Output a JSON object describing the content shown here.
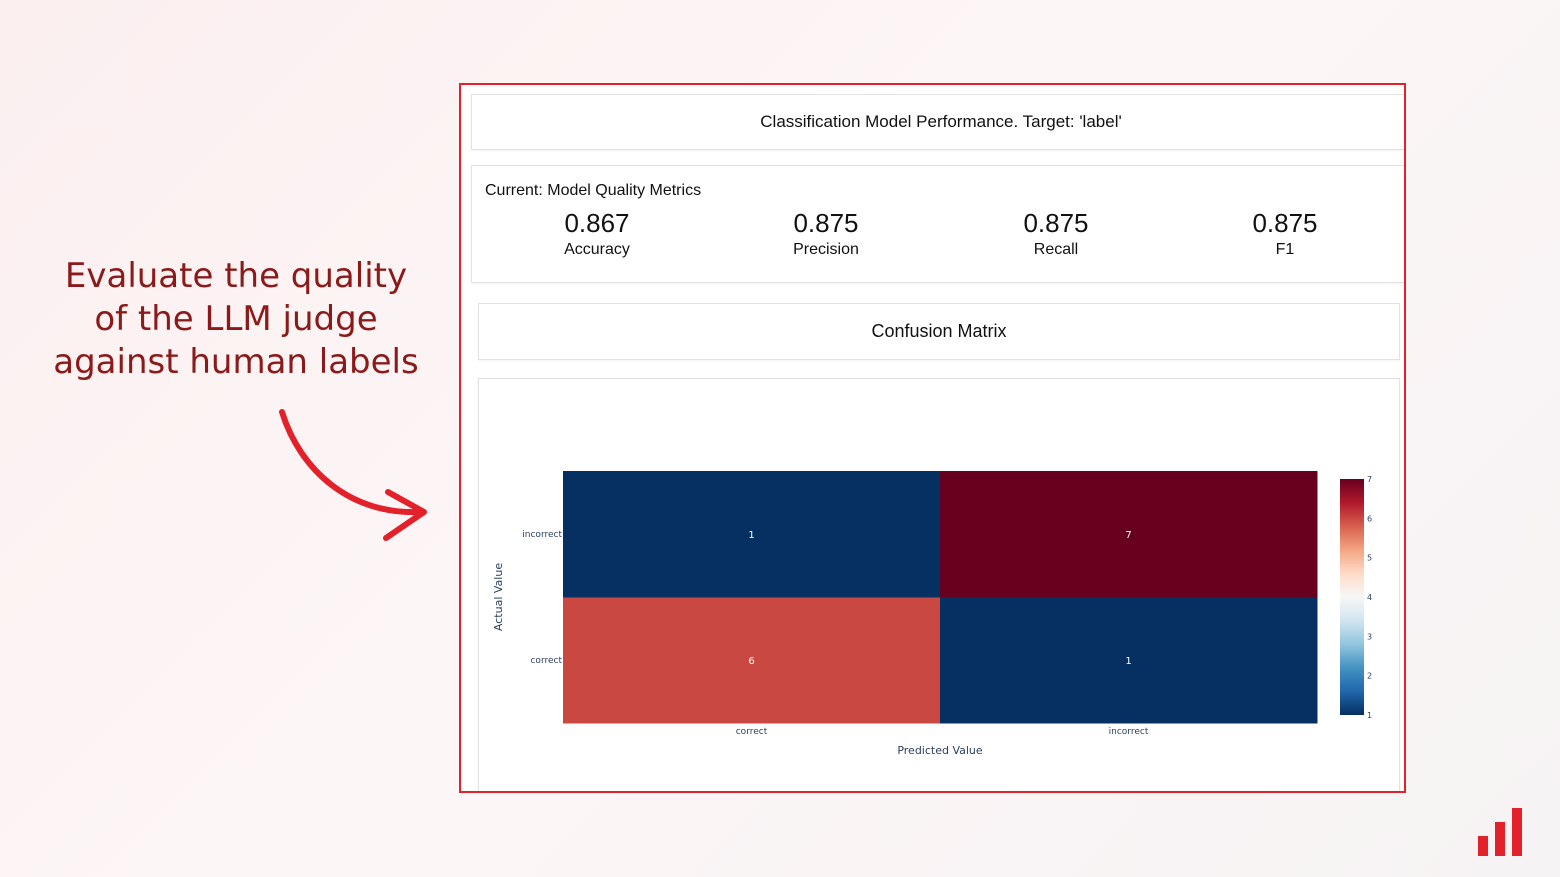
{
  "caption": {
    "lines": [
      "Evaluate the quality",
      "of the LLM judge",
      "against human labels"
    ]
  },
  "report": {
    "title": "Classification Model Performance. Target: 'label'",
    "metrics_heading": "Current: Model Quality Metrics",
    "metrics": [
      {
        "value": "0.867",
        "label": "Accuracy"
      },
      {
        "value": "0.875",
        "label": "Precision"
      },
      {
        "value": "0.875",
        "label": "Recall"
      },
      {
        "value": "0.875",
        "label": "F1"
      }
    ],
    "confusion_title": "Confusion Matrix"
  },
  "colors": {
    "frame_border": "#e3212b",
    "caption_text": "#8b1a1a",
    "arrow": "#e3212b",
    "logo": "#e3212b",
    "colorscale": [
      "#053061",
      "#2166ac",
      "#4393c3",
      "#92c5de",
      "#d1e5f0",
      "#f7f7f7",
      "#fddbc7",
      "#f4a582",
      "#d6604d",
      "#b2182b",
      "#67001f"
    ]
  },
  "chart_data": {
    "type": "heatmap",
    "title": "Confusion Matrix",
    "x_categories": [
      "correct",
      "incorrect"
    ],
    "y_categories": [
      "correct",
      "incorrect"
    ],
    "xlabel": "Predicted Value",
    "ylabel": "Actual Value",
    "z": [
      [
        6,
        1
      ],
      [
        1,
        7
      ]
    ],
    "colorbar": {
      "min": 1,
      "max": 7,
      "ticks": [
        1,
        2,
        3,
        4,
        5,
        6,
        7
      ]
    }
  }
}
